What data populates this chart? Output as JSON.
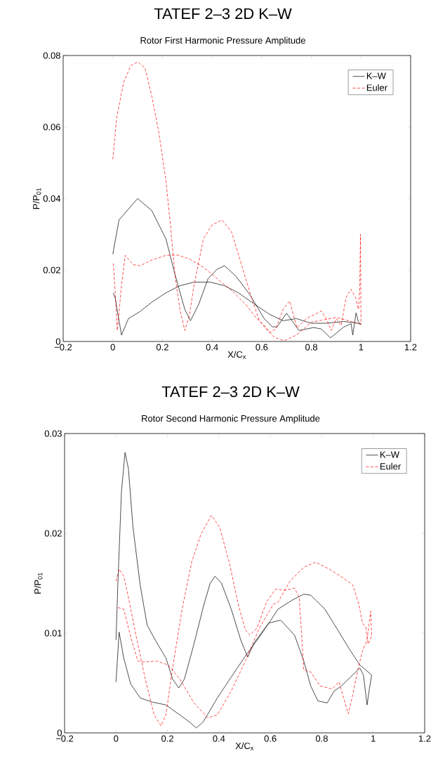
{
  "chart_data": [
    {
      "type": "line",
      "title": "TATEF 2–3 2D K–W",
      "subtitle": "Rotor First Harmonic Pressure Amplitude",
      "xlabel": "X/C$_{x}$",
      "ylabel": "P/P$_{01}$",
      "xlim": [
        -0.2,
        1.2
      ],
      "ylim": [
        0,
        0.08
      ],
      "xticks": [
        {
          "value": -0.2,
          "label": "−0.2"
        },
        0,
        0.2,
        0.4,
        0.6,
        0.8,
        1,
        1.2
      ],
      "yticks": [
        0,
        0.02,
        0.04,
        0.06,
        0.08
      ],
      "legend": "top right",
      "marker": "none",
      "series": [
        {
          "name": "K–W",
          "color": "#000000",
          "line_style": "solid",
          "x": [
            0,
            0.025,
            0.1,
            0.157,
            0.214,
            0.25,
            0.29,
            0.313,
            0.346,
            0.384,
            0.42,
            0.45,
            0.497,
            0.553,
            0.61,
            0.643,
            0.662,
            0.7,
            0.75,
            0.81,
            0.84,
            0.877,
            0.93,
            0.96,
            0.967,
            0.98,
            0.99,
            1.0,
            0.98,
            0.93,
            0.86,
            0.8,
            0.74,
            0.686,
            0.629,
            0.572,
            0.506,
            0.45,
            0.393,
            0.327,
            0.27,
            0.214,
            0.157,
            0.11,
            0.063,
            0.035,
            0.01,
            0.002
          ],
          "values": [
            0.0244,
            0.034,
            0.04,
            0.0366,
            0.0287,
            0.0189,
            0.009,
            0.0058,
            0.0104,
            0.0176,
            0.0202,
            0.0212,
            0.0182,
            0.013,
            0.0064,
            0.0041,
            0.0041,
            0.0079,
            0.0031,
            0.0039,
            0.0035,
            0.001,
            0.004,
            0.005,
            0.0018,
            0.008,
            0.0054,
            0.0048,
            0.0052,
            0.0056,
            0.0051,
            0.0051,
            0.0064,
            0.0058,
            0.0077,
            0.0104,
            0.0136,
            0.0156,
            0.0166,
            0.0166,
            0.0156,
            0.0136,
            0.011,
            0.0084,
            0.0064,
            0.0018,
            0.012,
            0.0136
          ]
        },
        {
          "name": "Euler",
          "color": "#ff0000",
          "line_style": "dashed",
          "x": [
            0,
            0.016,
            0.044,
            0.073,
            0.1,
            0.13,
            0.157,
            0.186,
            0.214,
            0.233,
            0.25,
            0.27,
            0.29,
            0.308,
            0.327,
            0.365,
            0.4,
            0.44,
            0.478,
            0.516,
            0.553,
            0.59,
            0.63,
            0.657,
            0.686,
            0.713,
            0.742,
            0.78,
            0.84,
            0.86,
            0.88,
            0.9,
            0.92,
            0.94,
            0.96,
            0.978,
            0.99,
            0.995,
            0.998,
            1.0,
            0.95,
            0.9,
            0.8,
            0.74,
            0.69,
            0.65,
            0.61,
            0.572,
            0.535,
            0.478,
            0.42,
            0.365,
            0.308,
            0.26,
            0.214,
            0.157,
            0.11,
            0.082,
            0.05,
            0.035,
            0.018,
            0.011,
            0.002
          ],
          "values": [
            0.051,
            0.0628,
            0.0726,
            0.0772,
            0.0782,
            0.0765,
            0.0687,
            0.0582,
            0.0451,
            0.032,
            0.0189,
            0.009,
            0.0031,
            0.0071,
            0.0156,
            0.0287,
            0.0326,
            0.034,
            0.0307,
            0.0221,
            0.0136,
            0.0058,
            0.0025,
            0.0035,
            0.009,
            0.0113,
            0.0038,
            0.0064,
            0.0085,
            0.0064,
            0.0031,
            0.0064,
            0.0045,
            0.0123,
            0.0146,
            0.0123,
            0.009,
            0.015,
            0.03,
            0.0048,
            0.0058,
            0.0067,
            0.0054,
            0.0018,
            0.0002,
            0.0012,
            0.0045,
            0.0071,
            0.0104,
            0.0143,
            0.0176,
            0.0208,
            0.0231,
            0.0242,
            0.0241,
            0.0228,
            0.0212,
            0.0215,
            0.0241,
            0.0156,
            0.0031,
            0.0123,
            0.022
          ]
        }
      ]
    },
    {
      "type": "line",
      "title": "TATEF 2–3 2D K–W",
      "subtitle": "Rotor Second Harmonic Pressure Amplitude",
      "xlabel": "X/C$_{x}$",
      "ylabel": "P/P$_{01}$",
      "xlim": [
        -0.2,
        1.2
      ],
      "ylim": [
        0,
        0.03
      ],
      "xticks": [
        {
          "value": -0.2,
          "label": "−0.2"
        },
        0,
        0.2,
        0.4,
        0.6,
        0.8,
        1,
        1.2
      ],
      "yticks": [
        0,
        0.01,
        0.02,
        0.03
      ],
      "legend": "top right",
      "marker": "none",
      "series": [
        {
          "name": "K–W",
          "color": "#000000",
          "line_style": "solid",
          "x": [
            0,
            0.007,
            0.021,
            0.035,
            0.048,
            0.066,
            0.094,
            0.121,
            0.157,
            0.194,
            0.22,
            0.244,
            0.266,
            0.303,
            0.339,
            0.366,
            0.385,
            0.41,
            0.448,
            0.485,
            0.512,
            0.539,
            0.594,
            0.64,
            0.694,
            0.73,
            0.757,
            0.785,
            0.821,
            0.848,
            0.876,
            0.912,
            0.948,
            0.962,
            0.976,
            0.985,
            0.994,
            0.948,
            0.912,
            0.867,
            0.812,
            0.757,
            0.73,
            0.685,
            0.63,
            0.594,
            0.557,
            0.503,
            0.448,
            0.394,
            0.339,
            0.312,
            0.285,
            0.248,
            0.194,
            0.139,
            0.094,
            0.057,
            0.03,
            0.012,
            0
          ],
          "values": [
            0.0093,
            0.0148,
            0.0241,
            0.0281,
            0.0265,
            0.0206,
            0.0148,
            0.0108,
            0.0091,
            0.0075,
            0.0054,
            0.0045,
            0.0054,
            0.0089,
            0.0126,
            0.015,
            0.0157,
            0.015,
            0.0124,
            0.0093,
            0.0076,
            0.0091,
            0.011,
            0.0113,
            0.0098,
            0.0072,
            0.0047,
            0.0032,
            0.003,
            0.0042,
            0.0047,
            0.0056,
            0.0065,
            0.0058,
            0.0028,
            0.0044,
            0.0058,
            0.0068,
            0.0082,
            0.0101,
            0.0124,
            0.0138,
            0.0139,
            0.0133,
            0.0124,
            0.011,
            0.0096,
            0.0077,
            0.0056,
            0.0035,
            0.0011,
            0.0005,
            0.0011,
            0.0018,
            0.0028,
            0.0031,
            0.0035,
            0.0049,
            0.0075,
            0.0101,
            0.0051
          ]
        },
        {
          "name": "Euler",
          "color": "#ff0000",
          "line_style": "dashed",
          "x": [
            0,
            0.012,
            0.03,
            0.048,
            0.075,
            0.112,
            0.148,
            0.175,
            0.194,
            0.22,
            0.257,
            0.294,
            0.33,
            0.371,
            0.403,
            0.44,
            0.475,
            0.503,
            0.52,
            0.548,
            0.585,
            0.62,
            0.658,
            0.694,
            0.712,
            0.721,
            0.73,
            0.757,
            0.794,
            0.84,
            0.867,
            0.885,
            0.903,
            0.921,
            0.94,
            0.958,
            0.976,
            0.99,
            0.994,
            0.98,
            0.971,
            0.958,
            0.944,
            0.921,
            0.885,
            0.83,
            0.776,
            0.73,
            0.676,
            0.63,
            0.612,
            0.557,
            0.503,
            0.448,
            0.394,
            0.357,
            0.303,
            0.248,
            0.203,
            0.157,
            0.112,
            0.085,
            0.057,
            0.03,
            0.002
          ],
          "values": [
            0.0152,
            0.0164,
            0.0157,
            0.0136,
            0.0101,
            0.0056,
            0.0018,
            0.0007,
            0.0018,
            0.0065,
            0.0124,
            0.0171,
            0.0199,
            0.0218,
            0.0206,
            0.0171,
            0.0129,
            0.0103,
            0.0098,
            0.0105,
            0.0131,
            0.0144,
            0.0143,
            0.0145,
            0.0136,
            0.0101,
            0.0063,
            0.0061,
            0.0047,
            0.0044,
            0.0051,
            0.0035,
            0.0019,
            0.0039,
            0.0063,
            0.0082,
            0.0093,
            0.0122,
            0.0097,
            0.0089,
            0.0106,
            0.011,
            0.0129,
            0.0148,
            0.0155,
            0.0164,
            0.0171,
            0.0166,
            0.0152,
            0.0131,
            0.0129,
            0.0105,
            0.0072,
            0.0042,
            0.0018,
            0.0015,
            0.003,
            0.0054,
            0.0068,
            0.0072,
            0.0071,
            0.0072,
            0.0096,
            0.0124,
            0.0126
          ]
        }
      ]
    }
  ]
}
